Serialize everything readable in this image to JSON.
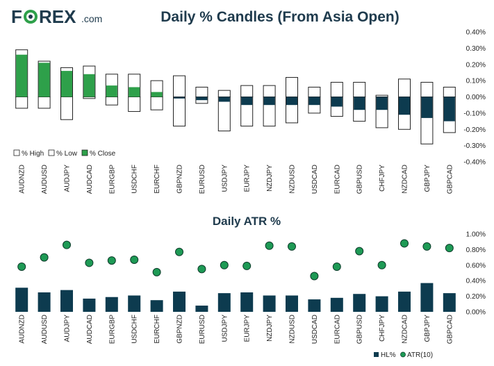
{
  "logo": {
    "text_a": "F",
    "text_b": "REX",
    "suffix": ".com",
    "brand_color": "#1f3b4d",
    "accent_color": "#2ea04a"
  },
  "chart_data": [
    {
      "type": "bar",
      "title": "Daily % Candles (From Asia Open)",
      "categories": [
        "AUDNZD",
        "AUDUSD",
        "AUDJPY",
        "AUDCAD",
        "EURGBP",
        "USDCHF",
        "EURCHF",
        "GBPNZD",
        "EURUSD",
        "USDJPY",
        "EURJPY",
        "NZDJPY",
        "NZDUSD",
        "USDCAD",
        "EURCAD",
        "GBPUSD",
        "CHFJPY",
        "NZDCAD",
        "GBPJPY",
        "GBPCAD"
      ],
      "series": [
        {
          "name": "% High",
          "values": [
            0.29,
            0.22,
            0.18,
            0.19,
            0.14,
            0.14,
            0.1,
            0.13,
            0.06,
            0.04,
            0.07,
            0.07,
            0.12,
            0.06,
            0.09,
            0.09,
            0.01,
            0.11,
            0.09,
            0.06
          ]
        },
        {
          "name": "% Low",
          "values": [
            -0.07,
            -0.07,
            -0.14,
            -0.01,
            -0.05,
            -0.09,
            -0.08,
            -0.18,
            -0.04,
            -0.21,
            -0.18,
            -0.18,
            -0.16,
            -0.1,
            -0.12,
            -0.15,
            -0.19,
            -0.2,
            -0.29,
            -0.22
          ]
        },
        {
          "name": "% Close",
          "values": [
            0.26,
            0.21,
            0.16,
            0.14,
            0.07,
            0.06,
            0.03,
            -0.01,
            -0.02,
            -0.03,
            -0.05,
            -0.05,
            -0.05,
            -0.05,
            -0.06,
            -0.08,
            -0.08,
            -0.11,
            -0.13,
            -0.15
          ]
        }
      ],
      "yticks": [
        "0.40%",
        "0.30%",
        "0.20%",
        "0.10%",
        "0.00%",
        "-0.10%",
        "-0.20%",
        "-0.30%",
        "-0.40%"
      ],
      "ylim": [
        -0.4,
        0.4
      ],
      "legend_position": "bottom-left",
      "colors": {
        "up": "#2ea04a",
        "down": "#0d3b4f",
        "outline": "#222222"
      }
    },
    {
      "type": "bar",
      "title": "Daily ATR %",
      "categories": [
        "AUDNZD",
        "AUDUSD",
        "AUDJPY",
        "AUDCAD",
        "EURGBP",
        "USDCHF",
        "EURCHF",
        "GBPNZD",
        "EURUSD",
        "USDJPY",
        "EURJPY",
        "NZDJPY",
        "NZDUSD",
        "USDCAD",
        "EURCAD",
        "GBPUSD",
        "CHFJPY",
        "NZDCAD",
        "GBPJPY",
        "GBPCAD"
      ],
      "series": [
        {
          "name": "HL%",
          "values": [
            0.31,
            0.25,
            0.28,
            0.17,
            0.19,
            0.21,
            0.15,
            0.26,
            0.08,
            0.24,
            0.25,
            0.21,
            0.21,
            0.16,
            0.18,
            0.23,
            0.2,
            0.26,
            0.37,
            0.24
          ]
        },
        {
          "name": "ATR(10)",
          "values": [
            0.58,
            0.7,
            0.86,
            0.63,
            0.66,
            0.67,
            0.51,
            0.77,
            0.55,
            0.6,
            0.59,
            0.85,
            0.84,
            0.46,
            0.58,
            0.78,
            0.6,
            0.88,
            0.84,
            0.82
          ]
        }
      ],
      "yticks": [
        "1.00%",
        "0.80%",
        "0.60%",
        "0.40%",
        "0.20%",
        "0.00%"
      ],
      "ylim": [
        0,
        1.0
      ],
      "legend_position": "bottom-right",
      "colors": {
        "bar": "#0d3b4f",
        "dot": "#1e9a55",
        "dot_outline": "#0d3b2a"
      }
    }
  ]
}
